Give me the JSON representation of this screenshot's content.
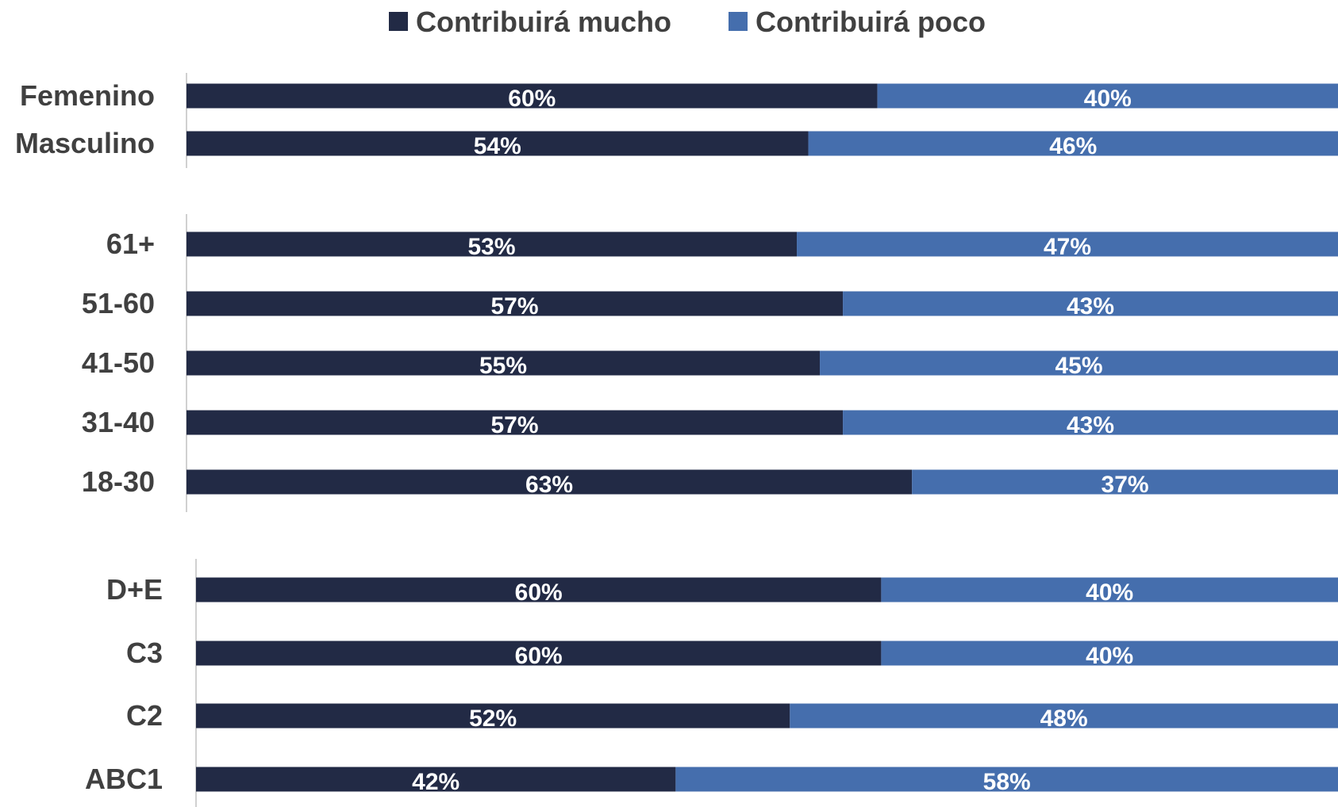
{
  "chart_data": [
    {
      "type": "bar",
      "orientation": "horizontal",
      "stacked": true,
      "categories": [
        "Femenino",
        "Masculino"
      ],
      "series": [
        {
          "name": "Contribuirá mucho",
          "values": [
            60,
            54
          ],
          "labels": [
            "60%",
            "54%"
          ]
        },
        {
          "name": "Contribuirá poco",
          "values": [
            40,
            46
          ],
          "labels": [
            "40%",
            "46%"
          ]
        }
      ],
      "xlim": [
        0,
        100
      ]
    },
    {
      "type": "bar",
      "orientation": "horizontal",
      "stacked": true,
      "categories": [
        "61+",
        "51-60",
        "41-50",
        "31-40",
        "18-30"
      ],
      "series": [
        {
          "name": "Contribuirá mucho",
          "values": [
            53,
            57,
            55,
            57,
            63
          ],
          "labels": [
            "53%",
            "57%",
            "55%",
            "57%",
            "63%"
          ]
        },
        {
          "name": "Contribuirá poco",
          "values": [
            47,
            43,
            45,
            43,
            37
          ],
          "labels": [
            "47%",
            "43%",
            "45%",
            "43%",
            "37%"
          ]
        }
      ],
      "xlim": [
        0,
        100
      ]
    },
    {
      "type": "bar",
      "orientation": "horizontal",
      "stacked": true,
      "categories": [
        "D+E",
        "C3",
        "C2",
        "ABC1"
      ],
      "series": [
        {
          "name": "Contribuirá mucho",
          "values": [
            60,
            60,
            52,
            42
          ],
          "labels": [
            "60%",
            "60%",
            "52%",
            "42%"
          ]
        },
        {
          "name": "Contribuirá poco",
          "values": [
            40,
            40,
            48,
            58
          ],
          "labels": [
            "40%",
            "40%",
            "48%",
            "58%"
          ]
        }
      ],
      "xlim": [
        0,
        100
      ]
    }
  ],
  "legend": {
    "position": "top",
    "items": [
      {
        "label": "Contribuirá mucho",
        "color": "#222a45"
      },
      {
        "label": "Contribuirá poco",
        "color": "#456ead"
      }
    ]
  },
  "colors": {
    "mucho": "#222a45",
    "poco": "#456ead",
    "axis": "#d0d0d0"
  }
}
